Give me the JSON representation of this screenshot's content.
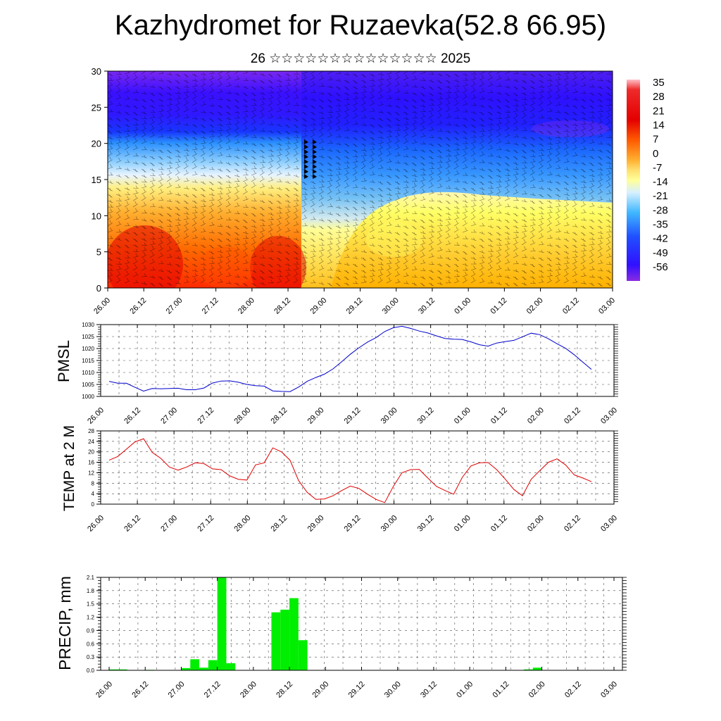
{
  "title": "Kazhydromet for Ruzaevka(52.8 66.95)",
  "subtitle": "26 ☆☆☆☆☆☆☆☆☆☆☆☆☆☆ 2025",
  "colors": {
    "pmsl_line": "#0000cc",
    "temp_line": "#dd0000",
    "precip_bar": "#00ee00",
    "palette": [
      "#8a2be2",
      "#3030ff",
      "#1e90ff",
      "#87ceeb",
      "#ffff66",
      "#ffa500",
      "#ff4500",
      "#cc0000",
      "#ffb6c1"
    ]
  },
  "chart_data": [
    {
      "type": "heatmap",
      "description_units": "temperature / wind cross-section",
      "x_tick_labels": [
        "26.00",
        "26.12",
        "27.00",
        "27.12",
        "28.00",
        "28.12",
        "29.00",
        "29.12",
        "30.00",
        "30.12",
        "01.00",
        "01.12",
        "02.00",
        "02.12",
        "03.00"
      ],
      "y_ticks": [
        0,
        5,
        10,
        15,
        20,
        25,
        30
      ],
      "ylim": [
        0,
        30
      ],
      "colorbar_labels": [
        "35",
        "28",
        "21",
        "14",
        "7",
        "0",
        "-7",
        "-14",
        "-21",
        "-28",
        "-35",
        "-42",
        "-49",
        "-56"
      ]
    },
    {
      "type": "line",
      "ylabel": "PMSL",
      "ylim": [
        1000,
        1030
      ],
      "y_ticks": [
        1000,
        1005,
        1010,
        1015,
        1020,
        1025,
        1030
      ],
      "x_tick_labels": [
        "26.00",
        "26.12",
        "27.00",
        "27.12",
        "28.00",
        "28.12",
        "29.00",
        "29.12",
        "30.00",
        "30.12",
        "01.00",
        "01.12",
        "02.00",
        "02.12",
        "03.00"
      ],
      "x": [
        0,
        3,
        6,
        9,
        12,
        15,
        18,
        21,
        24,
        27,
        30,
        33,
        36,
        39,
        42,
        45,
        48,
        51,
        54,
        57,
        60,
        63,
        66,
        69,
        72,
        75,
        78,
        81,
        84,
        87,
        90,
        93,
        96,
        99,
        102,
        105,
        108,
        111,
        114,
        117,
        120,
        123,
        126,
        129,
        132,
        135,
        138,
        141,
        144,
        147,
        150,
        153,
        156,
        159,
        162,
        165,
        168
      ],
      "values": [
        1006.3,
        1005.5,
        1005.5,
        1003.8,
        1002.2,
        1003.3,
        1003.2,
        1003.3,
        1003.4,
        1002.8,
        1002.8,
        1003.5,
        1005.6,
        1006.4,
        1006.5,
        1005.9,
        1005.0,
        1004.5,
        1004.3,
        1002.3,
        1002.1,
        1002.0,
        1003.9,
        1006.3,
        1007.9,
        1009.3,
        1011.5,
        1014.5,
        1017.6,
        1020.3,
        1022.7,
        1024.6,
        1027.1,
        1028.7,
        1029.3,
        1028.4,
        1027.3,
        1026.5,
        1025.3,
        1024.2,
        1023.9,
        1023.8,
        1022.8,
        1021.6,
        1021.0,
        1022.3,
        1022.9,
        1023.4,
        1024.9,
        1026.4,
        1025.8,
        1024.1,
        1022.0,
        1020.1,
        1017.4,
        1014.3,
        1011.3
      ]
    },
    {
      "type": "line",
      "ylabel": "TEMP at 2 M",
      "ylim": [
        0,
        28
      ],
      "y_ticks": [
        0,
        4,
        8,
        12,
        16,
        20,
        24,
        28
      ],
      "x_tick_labels": [
        "26.00",
        "26.12",
        "27.00",
        "27.12",
        "28.00",
        "28.12",
        "29.00",
        "29.12",
        "30.00",
        "30.12",
        "01.00",
        "01.12",
        "02.00",
        "02.12",
        "03.00"
      ],
      "x": [
        0,
        3,
        6,
        9,
        12,
        15,
        18,
        21,
        24,
        27,
        30,
        33,
        36,
        39,
        42,
        45,
        48,
        51,
        54,
        57,
        60,
        63,
        66,
        69,
        72,
        75,
        78,
        81,
        84,
        87,
        90,
        93,
        96,
        99,
        102,
        105,
        108,
        111,
        114,
        117,
        120,
        123,
        126,
        129,
        132,
        135,
        138,
        141,
        144,
        147,
        150,
        153,
        156,
        159,
        162,
        165,
        168
      ],
      "values": [
        16.8,
        18.2,
        21.0,
        23.8,
        25.0,
        19.8,
        17.5,
        14.2,
        13.0,
        14.2,
        15.8,
        15.5,
        13.5,
        13.2,
        10.8,
        9.5,
        9.2,
        15.0,
        15.8,
        21.5,
        20.0,
        16.8,
        9.0,
        4.5,
        1.8,
        2.0,
        3.2,
        5.2,
        6.9,
        6.0,
        3.8,
        1.8,
        0.6,
        6.8,
        12.0,
        13.2,
        13.3,
        10.0,
        6.8,
        5.2,
        3.8,
        10.2,
        14.6,
        15.8,
        15.9,
        13.2,
        9.5,
        5.6,
        3.2,
        9.5,
        12.8,
        16.0,
        17.3,
        15.0,
        11.2,
        10.0,
        8.6
      ]
    },
    {
      "type": "bar",
      "ylabel": "PRECIP, mm",
      "ylim": [
        0,
        2.1
      ],
      "y_ticks": [
        "0.0",
        "0.3",
        "0.6",
        "0.9",
        "1.2",
        "1.5",
        "1.8",
        "2.1"
      ],
      "x_tick_labels": [
        "26.00",
        "26.12",
        "27.00",
        "27.12",
        "28.00",
        "28.12",
        "29.00",
        "29.12",
        "30.00",
        "30.12",
        "01.00",
        "01.12",
        "02.00",
        "02.12",
        "03.00"
      ],
      "bars": [
        {
          "start": 0,
          "end": 3,
          "value": 0.02
        },
        {
          "start": 3,
          "end": 6,
          "value": 0.02
        },
        {
          "start": 12,
          "end": 15,
          "value": 0.01
        },
        {
          "start": 24,
          "end": 27,
          "value": 0.05
        },
        {
          "start": 27,
          "end": 30,
          "value": 0.25
        },
        {
          "start": 30,
          "end": 33,
          "value": 0.06
        },
        {
          "start": 33,
          "end": 36,
          "value": 0.23
        },
        {
          "start": 36,
          "end": 39,
          "value": 2.1
        },
        {
          "start": 39,
          "end": 42,
          "value": 0.16
        },
        {
          "start": 54,
          "end": 57,
          "value": 1.31
        },
        {
          "start": 57,
          "end": 60,
          "value": 1.37
        },
        {
          "start": 60,
          "end": 63,
          "value": 1.63
        },
        {
          "start": 63,
          "end": 66,
          "value": 0.68
        },
        {
          "start": 138,
          "end": 141,
          "value": 0.02
        },
        {
          "start": 141,
          "end": 144,
          "value": 0.06
        }
      ]
    }
  ]
}
